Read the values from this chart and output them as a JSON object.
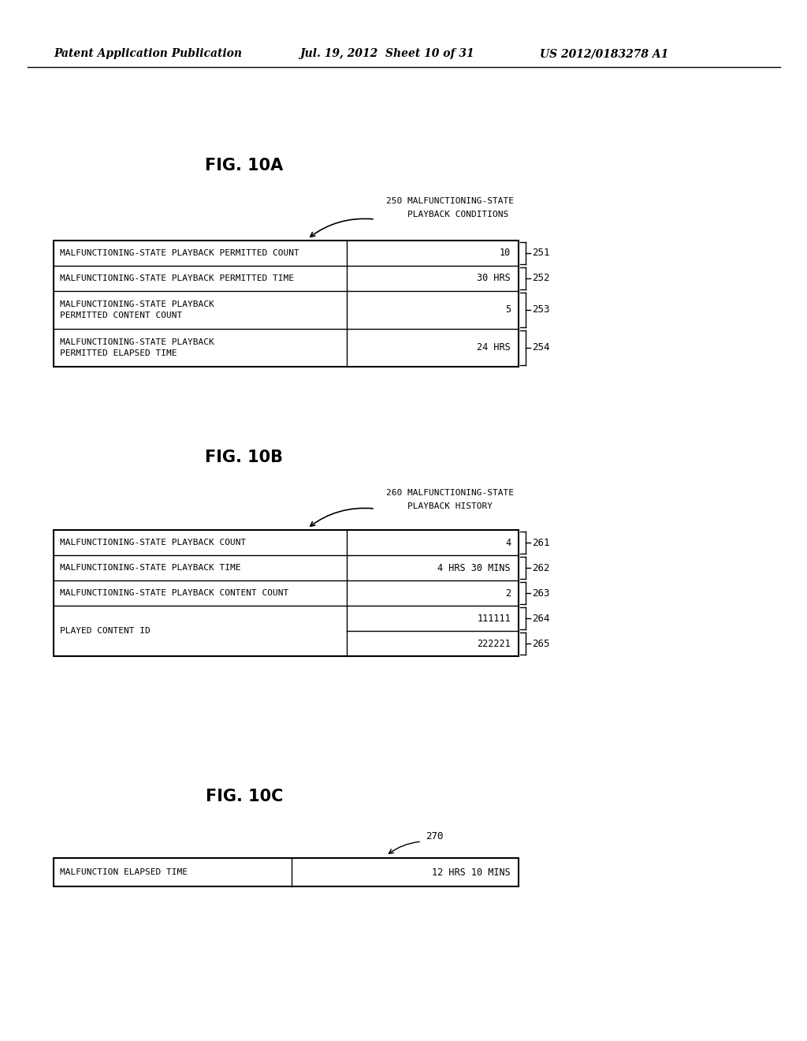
{
  "header_left": "Patent Application Publication",
  "header_mid": "Jul. 19, 2012  Sheet 10 of 31",
  "header_right": "US 2012/0183278 A1",
  "figA_title": "FIG. 10A",
  "figB_title": "FIG. 10B",
  "figC_title": "FIG. 10C",
  "labelA_line1": "250 MALFUNCTIONING-STATE",
  "labelA_line2": "    PLAYBACK CONDITIONS",
  "labelB_line1": "260 MALFUNCTIONING-STATE",
  "labelB_line2": "    PLAYBACK HISTORY",
  "labelC": "270",
  "tableA_rows": [
    {
      "label": "MALFUNCTIONING-STATE PLAYBACK PERMITTED COUNT",
      "value": "10",
      "ref": "251",
      "multiline": false
    },
    {
      "label": "MALFUNCTIONING-STATE PLAYBACK PERMITTED TIME",
      "value": "30 HRS",
      "ref": "252",
      "multiline": false
    },
    {
      "label": "MALFUNCTIONING-STATE PLAYBACK\nPERMITTED CONTENT COUNT",
      "value": "5",
      "ref": "253",
      "multiline": true
    },
    {
      "label": "MALFUNCTIONING-STATE PLAYBACK\nPERMITTED ELAPSED TIME",
      "value": "24 HRS",
      "ref": "254",
      "multiline": true
    }
  ],
  "tableB_rows": [
    {
      "label": "MALFUNCTIONING-STATE PLAYBACK COUNT",
      "value": "4",
      "ref": "261",
      "multiline": false,
      "split_value": false
    },
    {
      "label": "MALFUNCTIONING-STATE PLAYBACK TIME",
      "value": "4 HRS 30 MINS",
      "ref": "262",
      "multiline": false,
      "split_value": false
    },
    {
      "label": "MALFUNCTIONING-STATE PLAYBACK CONTENT COUNT",
      "value": "2",
      "ref": "263",
      "multiline": false,
      "split_value": false
    },
    {
      "label": "PLAYED CONTENT ID",
      "value1": "111111",
      "value2": "222221",
      "ref1": "264",
      "ref2": "265",
      "split_value": true
    }
  ],
  "tableC_rows": [
    {
      "label": "MALFUNCTION ELAPSED TIME",
      "value": "12 HRS 10 MINS"
    }
  ],
  "bg_color": "#ffffff",
  "text_color": "#000000",
  "line_color": "#000000"
}
